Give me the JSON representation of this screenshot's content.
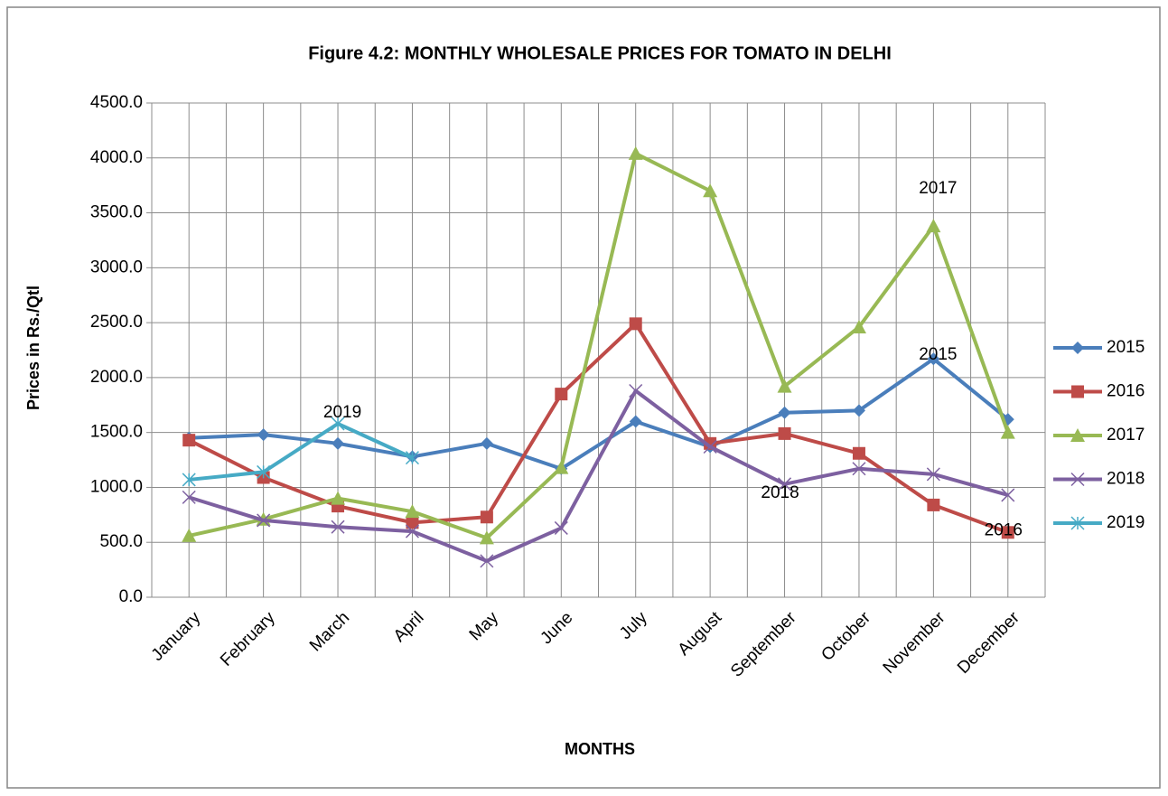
{
  "chart_data": {
    "type": "line",
    "title": "Figure 4.2: MONTHLY WHOLESALE PRICES FOR TOMATO IN DELHI",
    "x_label": "MONTHS",
    "y_label": "Prices in Rs./Qtl",
    "categories": [
      "January",
      "February",
      "March",
      "April",
      "May",
      "June",
      "July",
      "August",
      "September",
      "October",
      "November",
      "December"
    ],
    "series": [
      {
        "name": "2015",
        "color": "#4a7ebb",
        "marker": "diamond",
        "values": [
          1450,
          1480,
          1400,
          1280,
          1400,
          1170,
          1600,
          1370,
          1680,
          1700,
          2170,
          1620
        ]
      },
      {
        "name": "2016",
        "color": "#be4b48",
        "marker": "square",
        "values": [
          1430,
          1090,
          830,
          680,
          730,
          1850,
          2490,
          1400,
          1490,
          1310,
          840,
          590
        ]
      },
      {
        "name": "2017",
        "color": "#98b954",
        "marker": "triangle",
        "values": [
          560,
          710,
          900,
          780,
          540,
          1180,
          4040,
          3700,
          1920,
          2460,
          3380,
          1500
        ]
      },
      {
        "name": "2018",
        "color": "#7d60a0",
        "marker": "x",
        "values": [
          910,
          700,
          640,
          600,
          330,
          630,
          1880,
          1370,
          1030,
          1170,
          1120,
          930
        ]
      },
      {
        "name": "2019",
        "color": "#46aac5",
        "marker": "star",
        "values": [
          1070,
          1140,
          1580,
          1270,
          null,
          null,
          null,
          null,
          null,
          null,
          null,
          null
        ]
      }
    ],
    "ylim": [
      0,
      4500
    ],
    "yticks": [
      {
        "value": 0,
        "label": "0.0"
      },
      {
        "value": 500,
        "label": "500.0"
      },
      {
        "value": 1000,
        "label": "1000.0"
      },
      {
        "value": 1500,
        "label": "1500.0"
      },
      {
        "value": 2000,
        "label": "2000.0"
      },
      {
        "value": 2500,
        "label": "2500.0"
      },
      {
        "value": 3000,
        "label": "3000.0"
      },
      {
        "value": 3500,
        "label": "3500.0"
      },
      {
        "value": 4000,
        "label": "4000.0"
      },
      {
        "value": 4500,
        "label": "4500.0"
      }
    ],
    "grid": true,
    "legend": "right"
  }
}
